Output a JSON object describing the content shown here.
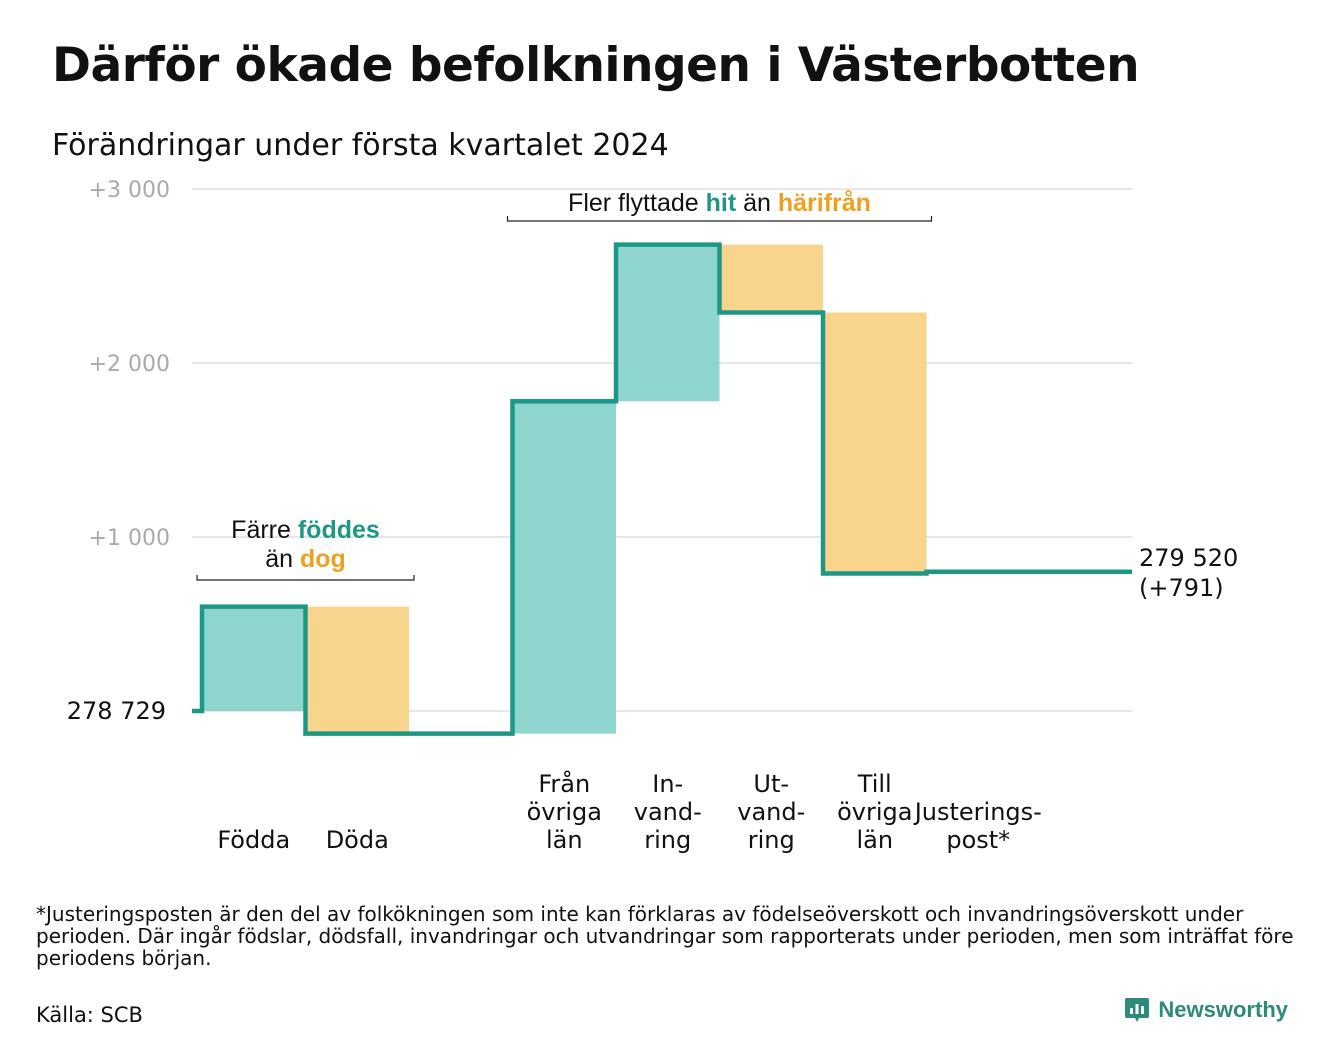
{
  "header": {
    "title": "Därför ökade befolkningen i Västerbotten",
    "subtitle": "Förändringar under första kvartalet 2024"
  },
  "chart_data": {
    "type": "waterfall",
    "start": {
      "value": 278729,
      "label": "278   729"
    },
    "end": {
      "value": 279520,
      "label_line1": "279 520",
      "label_line2": "(+791)"
    },
    "y_ticks": [
      {
        "offset": 1000,
        "label": "+1   000"
      },
      {
        "offset": 2000,
        "label": "+2   000"
      },
      {
        "offset": 3000,
        "label": "+3   000"
      }
    ],
    "ylim_offset": [
      -180,
      3000
    ],
    "grid": true,
    "steps": [
      {
        "name": "Födda",
        "label_lines": [
          "Födda"
        ],
        "change": 600,
        "kind": "in",
        "bar": true
      },
      {
        "name": "Döda",
        "label_lines": [
          "Döda"
        ],
        "change": -730,
        "kind": "out",
        "bar": true
      },
      {
        "name": "gap",
        "label_lines": [],
        "change": 0,
        "kind": "none",
        "bar": false
      },
      {
        "name": "Från övriga län",
        "label_lines": [
          "Från",
          "övriga",
          "län"
        ],
        "change": 1910,
        "kind": "in",
        "bar": true
      },
      {
        "name": "Invandring",
        "label_lines": [
          "In-",
          "vand-",
          "ring"
        ],
        "change": 900,
        "kind": "in",
        "bar": true
      },
      {
        "name": "Utvandring",
        "label_lines": [
          "Ut-",
          "vand-",
          "ring"
        ],
        "change": -390,
        "kind": "out",
        "bar": true
      },
      {
        "name": "Till övriga län",
        "label_lines": [
          "Till",
          "övriga",
          "län"
        ],
        "change": -1500,
        "kind": "out",
        "bar": true
      },
      {
        "name": "Justeringspost*",
        "label_lines": [
          "Justerings-",
          "post*"
        ],
        "change": 10,
        "kind": "none",
        "bar": false
      }
    ],
    "annotations": {
      "births": {
        "line1_pre": "Färre",
        "line1_hl": "föddes",
        "line2_pre": "än",
        "line2_hl": "dog"
      },
      "moves": {
        "pre": "Fler flyttade",
        "hl1": "hit",
        "mid": "än",
        "hl2": "härifrån"
      }
    },
    "colors": {
      "in_fill": "#8dd5cd",
      "out_fill": "#f9d48c",
      "line": "#1e9886",
      "in_text": "#1e9886",
      "out_text": "#f0a020",
      "grid": "#dddddd",
      "tick_text": "#aaaaaa"
    }
  },
  "footer": {
    "footnote": "*Justeringsposten är den del av folkökningen som inte kan förklaras av födelseöverskott och invandringsöverskott under perioden. Där ingår födslar, dödsfall, invandringar och utvandringar som rapporterats under perioden, men som inträffat före periodens början.",
    "source": "Källa: SCB",
    "brand": "Newsworthy",
    "brand_icon": "newsworthy-logo-icon"
  }
}
